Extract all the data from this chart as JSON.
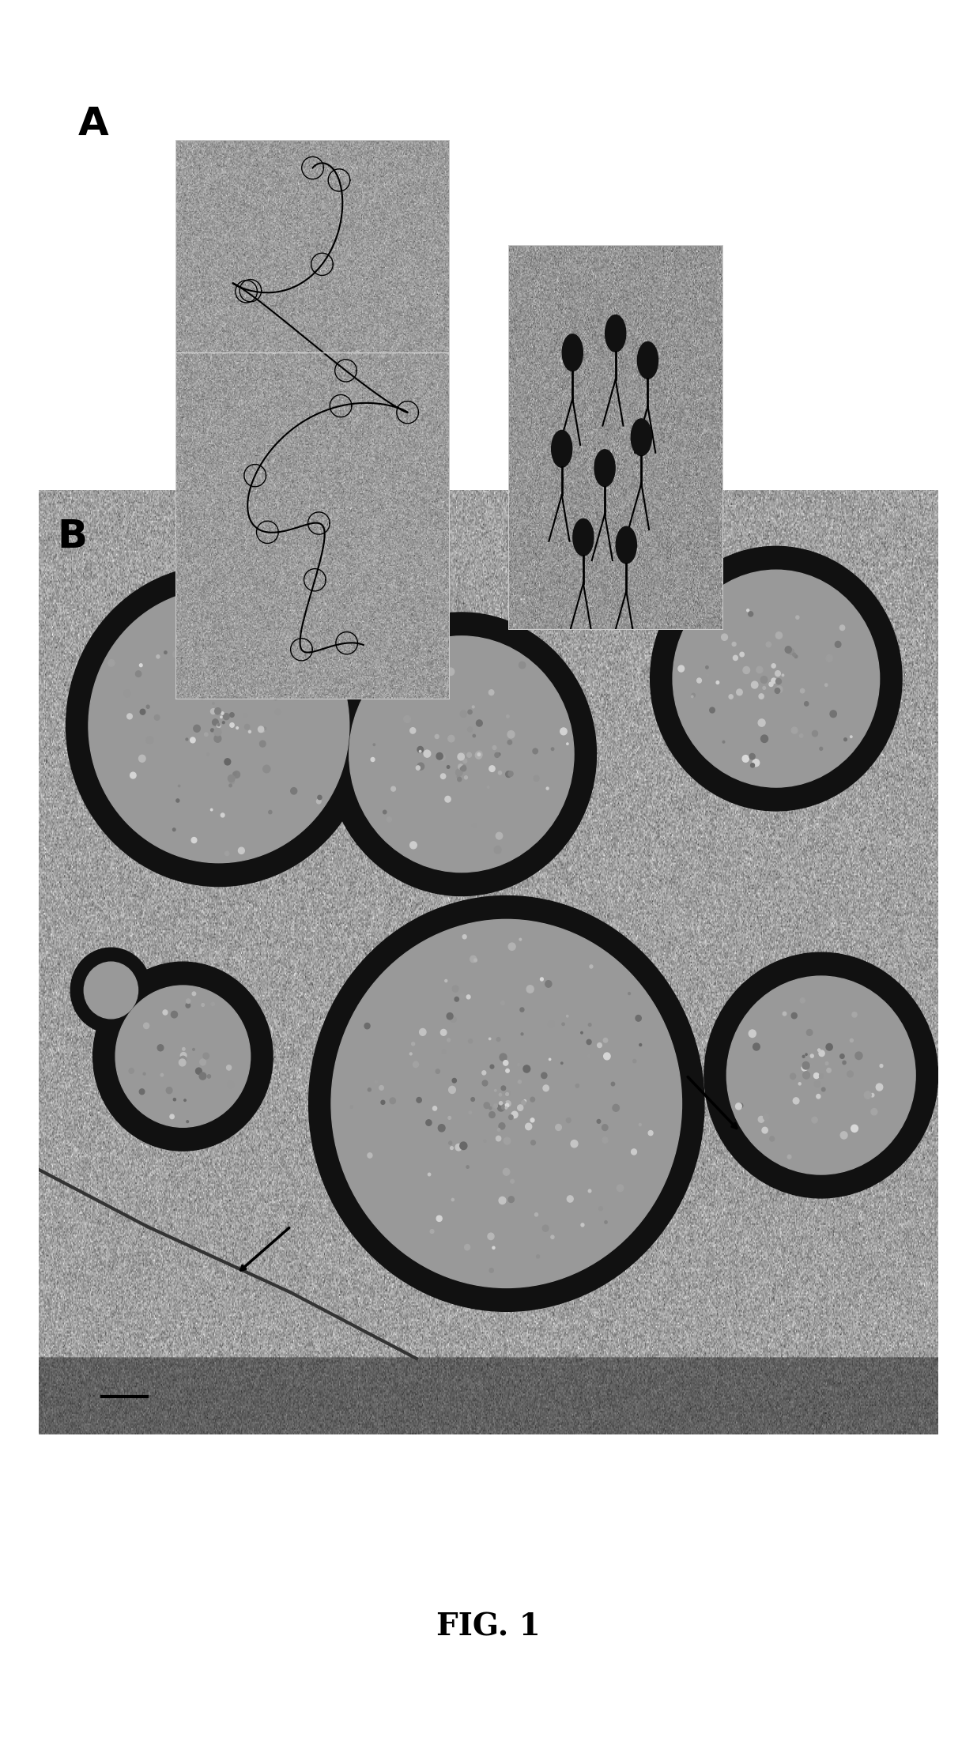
{
  "title": "FIG. 1",
  "label_A": "A",
  "label_B": "B",
  "bg_color": "#ffffff",
  "fig_width": 12.36,
  "fig_height": 22.13,
  "title_fontsize": 28,
  "label_fontsize": 36,
  "title_fontstyle": "bold"
}
